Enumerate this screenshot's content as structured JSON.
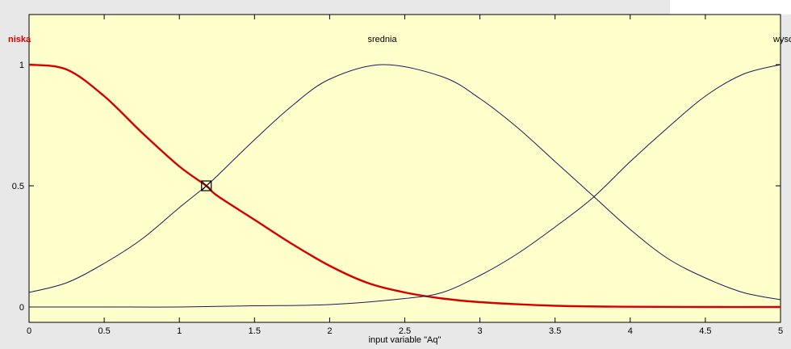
{
  "chart_data": {
    "type": "line",
    "xlabel": "input variable \"Aq\"",
    "xlim": [
      0,
      5
    ],
    "ylim": [
      0,
      1
    ],
    "x_ticks": [
      0,
      0.5,
      1,
      1.5,
      2,
      2.5,
      3,
      3.5,
      4,
      4.5,
      5
    ],
    "x_tick_labels": [
      "0",
      "0.5",
      "1",
      "1.5",
      "2",
      "2.5",
      "3",
      "3.5",
      "4",
      "4.5",
      "5"
    ],
    "y_ticks": [
      0,
      0.5,
      1
    ],
    "y_tick_labels": [
      "0",
      "0.5",
      "1"
    ],
    "colors": {
      "background": "#ffffcc",
      "selected": "#d40000",
      "normal": "#1a1a5a"
    },
    "series": [
      {
        "name": "niska",
        "selected": true,
        "x": [
          0,
          0.25,
          0.5,
          0.75,
          1,
          1.18,
          1.25,
          1.5,
          1.75,
          2,
          2.25,
          2.5,
          2.75,
          3,
          3.5,
          4,
          4.5,
          5
        ],
        "y": [
          1,
          0.98,
          0.87,
          0.72,
          0.58,
          0.5,
          0.46,
          0.36,
          0.26,
          0.17,
          0.1,
          0.06,
          0.035,
          0.02,
          0.005,
          0.001,
          0,
          0
        ]
      },
      {
        "name": "srednia",
        "selected": false,
        "x": [
          0,
          0.25,
          0.5,
          0.75,
          1,
          1.18,
          1.25,
          1.5,
          1.75,
          2,
          2.35,
          2.75,
          3,
          3.25,
          3.5,
          3.75,
          4,
          4.25,
          4.5,
          4.75,
          5
        ],
        "y": [
          0.06,
          0.1,
          0.18,
          0.28,
          0.41,
          0.5,
          0.54,
          0.69,
          0.83,
          0.94,
          1,
          0.95,
          0.86,
          0.74,
          0.6,
          0.46,
          0.32,
          0.2,
          0.12,
          0.06,
          0.03
        ]
      },
      {
        "name": "wysok",
        "selected": false,
        "x": [
          0,
          0.5,
          1,
          1.5,
          2,
          2.5,
          2.75,
          3,
          3.25,
          3.5,
          3.75,
          4,
          4.25,
          4.5,
          4.75,
          5
        ],
        "y": [
          0,
          0,
          0,
          0.005,
          0.01,
          0.035,
          0.06,
          0.13,
          0.22,
          0.33,
          0.45,
          0.6,
          0.74,
          0.87,
          0.96,
          1
        ]
      }
    ],
    "marker": {
      "x": 1.18,
      "y": 0.5
    }
  }
}
